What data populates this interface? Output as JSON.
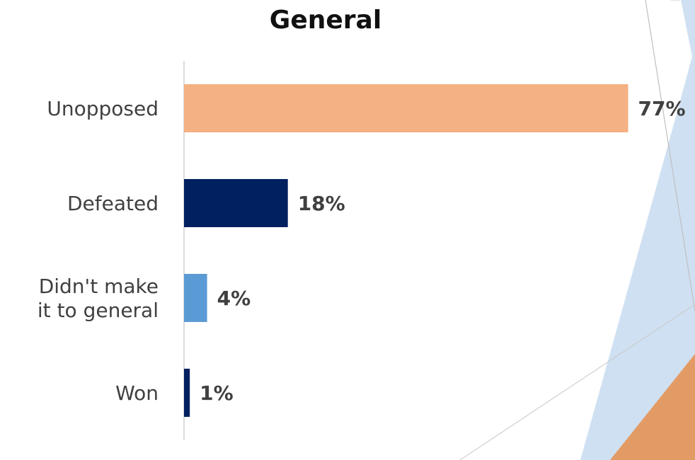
{
  "chart_data": {
    "type": "bar",
    "orientation": "horizontal",
    "title": "General",
    "xlabel": "",
    "ylabel": "",
    "categories": [
      [
        "Unopposed"
      ],
      [
        "Defeated"
      ],
      [
        "Didn't make",
        "it to general"
      ],
      [
        "Won"
      ]
    ],
    "values": [
      77,
      18,
      4,
      1
    ],
    "value_labels": [
      "77%",
      "18%",
      "4%",
      "1%"
    ],
    "bar_colors": [
      "#F4B183",
      "#002060",
      "#5B9BD5",
      "#002060"
    ],
    "xlim": [
      0,
      100
    ],
    "grid": false,
    "legend": "none"
  },
  "decor": {
    "light_blue": "#CFE0F2",
    "orange": "#E39B65",
    "line_gray": "#BFBFBF"
  }
}
